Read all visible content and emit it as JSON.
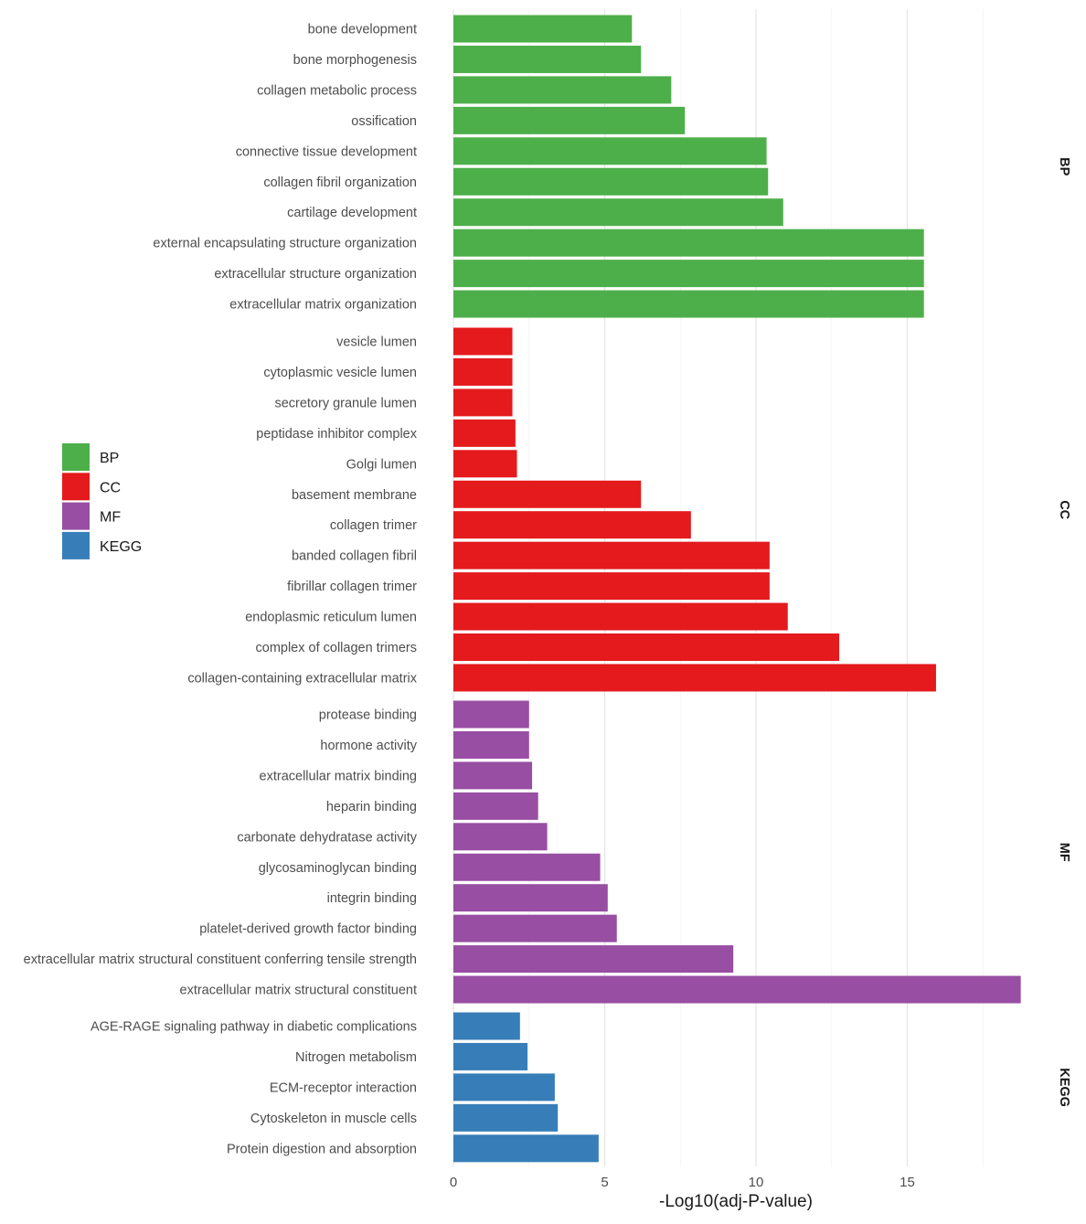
{
  "chart_data": {
    "type": "bar",
    "orientation": "horizontal",
    "xlabel": "-Log10(adj-P-value)",
    "ylabel": "",
    "xlim": [
      0,
      19
    ],
    "x_ticks": [
      0,
      5,
      10,
      15
    ],
    "grid": true,
    "legend_position": "left",
    "legend": [
      {
        "name": "BP",
        "color": "#4daf4a"
      },
      {
        "name": "CC",
        "color": "#e41a1c"
      },
      {
        "name": "MF",
        "color": "#984ea3"
      },
      {
        "name": "KEGG",
        "color": "#377eb8"
      }
    ],
    "panels": [
      {
        "name": "BP",
        "color": "#4daf4a",
        "categories": [
          "bone development",
          "bone morphogenesis",
          "collagen metabolic process",
          "ossification",
          "connective tissue development",
          "collagen fibril organization",
          "cartilage development",
          "external encapsulating structure organization",
          "extracellular structure organization",
          "extracellular matrix organization"
        ],
        "values": [
          5.9,
          6.2,
          7.2,
          7.65,
          10.35,
          10.4,
          10.9,
          15.55,
          15.55,
          15.55
        ]
      },
      {
        "name": "CC",
        "color": "#e41a1c",
        "categories": [
          "vesicle lumen",
          "cytoplasmic vesicle lumen",
          "secretory granule lumen",
          "peptidase inhibitor complex",
          "Golgi lumen",
          "basement membrane",
          "collagen trimer",
          "banded collagen fibril",
          "fibrillar collagen trimer",
          "endoplasmic reticulum lumen",
          "complex of collagen trimers",
          "collagen-containing extracellular matrix"
        ],
        "values": [
          1.95,
          1.95,
          1.95,
          2.05,
          2.1,
          6.2,
          7.85,
          10.45,
          10.45,
          11.05,
          12.75,
          15.95
        ]
      },
      {
        "name": "MF",
        "color": "#984ea3",
        "categories": [
          "protease binding",
          "hormone activity",
          "extracellular matrix binding",
          "heparin binding",
          "carbonate dehydratase activity",
          "glycosaminoglycan binding",
          "integrin binding",
          "platelet-derived growth factor binding",
          "extracellular matrix structural constituent conferring tensile strength",
          "extracellular matrix structural constituent"
        ],
        "values": [
          2.5,
          2.5,
          2.6,
          2.8,
          3.1,
          4.85,
          5.1,
          5.4,
          9.25,
          18.75
        ]
      },
      {
        "name": "KEGG",
        "color": "#377eb8",
        "categories": [
          "AGE-RAGE signaling pathway in diabetic complications",
          "Nitrogen metabolism",
          "ECM-receptor interaction",
          "Cytoskeleton in muscle cells",
          "Protein digestion and absorption"
        ],
        "values": [
          2.2,
          2.45,
          3.35,
          3.45,
          4.8
        ]
      }
    ]
  }
}
